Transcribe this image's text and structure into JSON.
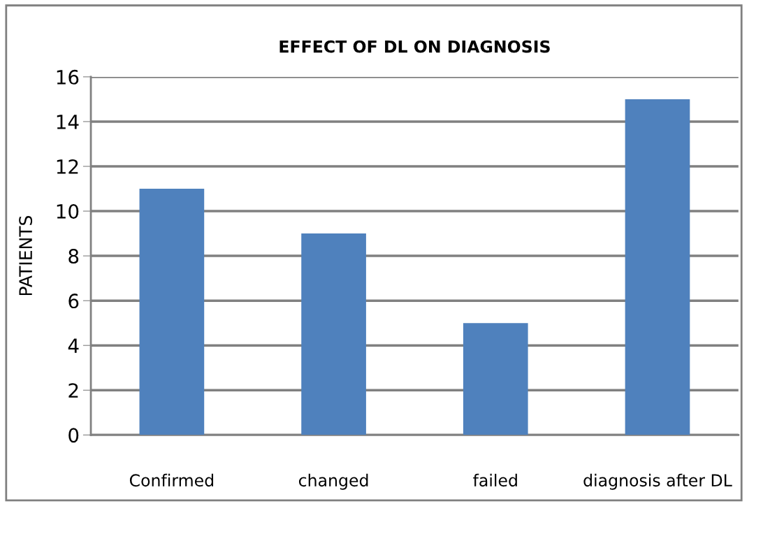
{
  "chart_data": {
    "type": "bar",
    "title": "EFFECT OF DL ON DIAGNOSIS",
    "ylabel": "PATIENTS",
    "categories": [
      "Confirmed",
      "changed",
      "failed",
      "diagnosis after DL"
    ],
    "values": [
      11,
      9,
      5,
      15
    ],
    "color": "#4f81bd",
    "ylim": [
      0,
      16
    ],
    "yticks": [
      0,
      2,
      4,
      6,
      8,
      10,
      12,
      14,
      16
    ],
    "grid": "y"
  }
}
